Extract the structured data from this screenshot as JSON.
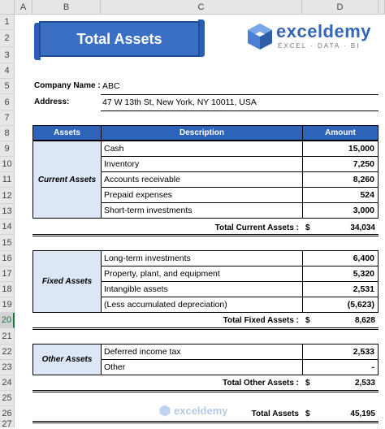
{
  "columns": [
    "A",
    "B",
    "C",
    "D"
  ],
  "rows": [
    "1",
    "2",
    "3",
    "4",
    "5",
    "6",
    "7",
    "8",
    "9",
    "10",
    "11",
    "12",
    "13",
    "14",
    "15",
    "16",
    "17",
    "18",
    "19",
    "20",
    "21",
    "22",
    "23",
    "24",
    "25",
    "26",
    "27"
  ],
  "banner": {
    "title": "Total Assets"
  },
  "logo": {
    "name": "exceldemy",
    "tagline": "EXCEL · DATA · BI"
  },
  "company": {
    "name_label": "Company Name :",
    "name_value": "ABC",
    "address_label": "Address:",
    "address_value": "47 W 13th St, New York, NY 10011, USA"
  },
  "table": {
    "headers": {
      "assets": "Assets",
      "description": "Description",
      "amount": "Amount"
    },
    "current": {
      "category": "Current Assets",
      "items": [
        {
          "desc": "Cash",
          "amount": "15,000"
        },
        {
          "desc": "Inventory",
          "amount": "7,250"
        },
        {
          "desc": "Accounts receivable",
          "amount": "8,260"
        },
        {
          "desc": "Prepaid expenses",
          "amount": "524"
        },
        {
          "desc": "Short-term investments",
          "amount": "3,000"
        }
      ],
      "total_label": "Total Current Assets :",
      "total_currency": "$",
      "total_value": "34,034"
    },
    "fixed": {
      "category": "Fixed Assets",
      "items": [
        {
          "desc": "Long-term investments",
          "amount": "6,400"
        },
        {
          "desc": "Property, plant, and equipment",
          "amount": "5,320"
        },
        {
          "desc": "Intangible assets",
          "amount": "2,531"
        },
        {
          "desc": "(Less accumulated depreciation)",
          "amount": "(5,623)"
        }
      ],
      "total_label": "Total Fixed Assets :",
      "total_currency": "$",
      "total_value": "8,628"
    },
    "other": {
      "category": "Other Assets",
      "items": [
        {
          "desc": "Deferred income tax",
          "amount": "2,533"
        },
        {
          "desc": "Other",
          "amount": "-"
        }
      ],
      "total_label": "Total Other Assets :",
      "total_currency": "$",
      "total_value": "2,533"
    },
    "grand": {
      "label": "Total Assets",
      "currency": "$",
      "value": "45,195"
    }
  },
  "selected_row": "20",
  "colors": {
    "header_blue": "#2e64b8",
    "category_fill": "#dce6f4",
    "banner_blue": "#2b5fb4"
  }
}
